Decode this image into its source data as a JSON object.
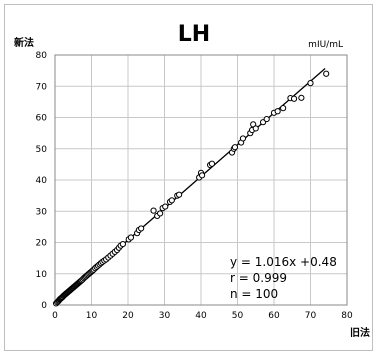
{
  "chart_data": {
    "type": "scatter",
    "title": "LH",
    "unit_label": "mIU/mL",
    "xlabel": "旧法",
    "ylabel": "新法",
    "xlim": [
      0,
      80
    ],
    "ylim": [
      0,
      80
    ],
    "x_ticks": [
      "0",
      "10",
      "20",
      "30",
      "40",
      "50",
      "60",
      "70",
      "80"
    ],
    "y_ticks": [
      "0",
      "10",
      "20",
      "30",
      "40",
      "50",
      "60",
      "70",
      "80"
    ],
    "grid": true,
    "regression": {
      "slope": 1.016,
      "intercept": 0.48,
      "x_range": [
        0,
        74
      ]
    },
    "stats": [
      "y = 1.016x +0.48",
      "r = 0.999",
      "n = 100"
    ],
    "points": [
      [
        0.3,
        0.5
      ],
      [
        0.6,
        0.9
      ],
      [
        0.9,
        1.2
      ],
      [
        1.1,
        1.5
      ],
      [
        1.3,
        1.8
      ],
      [
        1.5,
        2.0
      ],
      [
        1.7,
        2.2
      ],
      [
        1.9,
        2.4
      ],
      [
        2.1,
        2.6
      ],
      [
        2.3,
        2.9
      ],
      [
        2.5,
        3.1
      ],
      [
        2.7,
        3.3
      ],
      [
        2.9,
        3.5
      ],
      [
        3.1,
        3.7
      ],
      [
        3.3,
        3.9
      ],
      [
        3.5,
        4.1
      ],
      [
        3.7,
        4.3
      ],
      [
        3.9,
        4.5
      ],
      [
        4.1,
        4.7
      ],
      [
        4.3,
        4.9
      ],
      [
        4.5,
        5.1
      ],
      [
        4.7,
        5.3
      ],
      [
        4.9,
        5.5
      ],
      [
        5.1,
        5.7
      ],
      [
        5.3,
        5.9
      ],
      [
        5.5,
        6.1
      ],
      [
        5.7,
        6.3
      ],
      [
        5.9,
        6.5
      ],
      [
        6.1,
        6.7
      ],
      [
        6.3,
        6.9
      ],
      [
        6.5,
        7.1
      ],
      [
        6.7,
        7.3
      ],
      [
        6.9,
        7.5
      ],
      [
        7.1,
        7.7
      ],
      [
        7.3,
        7.9
      ],
      [
        7.6,
        8.2
      ],
      [
        7.9,
        8.6
      ],
      [
        8.2,
        8.9
      ],
      [
        8.5,
        9.2
      ],
      [
        8.8,
        9.5
      ],
      [
        9.1,
        9.8
      ],
      [
        9.4,
        10.1
      ],
      [
        9.7,
        10.4
      ],
      [
        10.0,
        10.7
      ],
      [
        10.3,
        11.0
      ],
      [
        10.6,
        11.3
      ],
      [
        11.0,
        11.8
      ],
      [
        11.4,
        12.2
      ],
      [
        11.8,
        12.6
      ],
      [
        12.2,
        13.0
      ],
      [
        12.6,
        13.4
      ],
      [
        13.0,
        13.8
      ],
      [
        13.5,
        14.2
      ],
      [
        14.0,
        14.6
      ],
      [
        14.6,
        15.2
      ],
      [
        15.2,
        15.8
      ],
      [
        15.8,
        16.4
      ],
      [
        16.4,
        17.0
      ],
      [
        17.0,
        17.6
      ],
      [
        17.5,
        18.3
      ],
      [
        18.0,
        19.0
      ],
      [
        18.6,
        19.5
      ],
      [
        20.2,
        21.0
      ],
      [
        20.8,
        21.6
      ],
      [
        22.5,
        23.0
      ],
      [
        23.0,
        24.0
      ],
      [
        23.6,
        24.5
      ],
      [
        27.0,
        30.2
      ],
      [
        28.0,
        28.5
      ],
      [
        28.8,
        29.3
      ],
      [
        29.5,
        31.0
      ],
      [
        30.2,
        31.5
      ],
      [
        31.5,
        33.0
      ],
      [
        32.0,
        33.5
      ],
      [
        33.5,
        35.0
      ],
      [
        34.0,
        35.3
      ],
      [
        39.5,
        40.8
      ],
      [
        40.0,
        42.3
      ],
      [
        40.3,
        41.5
      ],
      [
        42.5,
        44.8
      ],
      [
        43.0,
        45.2
      ],
      [
        48.5,
        48.8
      ],
      [
        49.0,
        50.0
      ],
      [
        49.3,
        50.5
      ],
      [
        51.0,
        52.0
      ],
      [
        51.5,
        53.3
      ],
      [
        53.5,
        55.0
      ],
      [
        54.0,
        56.0
      ],
      [
        54.3,
        57.8
      ],
      [
        55.0,
        56.5
      ],
      [
        57.0,
        58.5
      ],
      [
        58.0,
        59.5
      ],
      [
        60.0,
        61.5
      ],
      [
        61.0,
        62.0
      ],
      [
        62.5,
        63.0
      ],
      [
        64.5,
        66.2
      ],
      [
        65.5,
        66.0
      ],
      [
        67.5,
        66.3
      ],
      [
        70.0,
        71.0
      ],
      [
        74.3,
        74.0
      ]
    ]
  }
}
